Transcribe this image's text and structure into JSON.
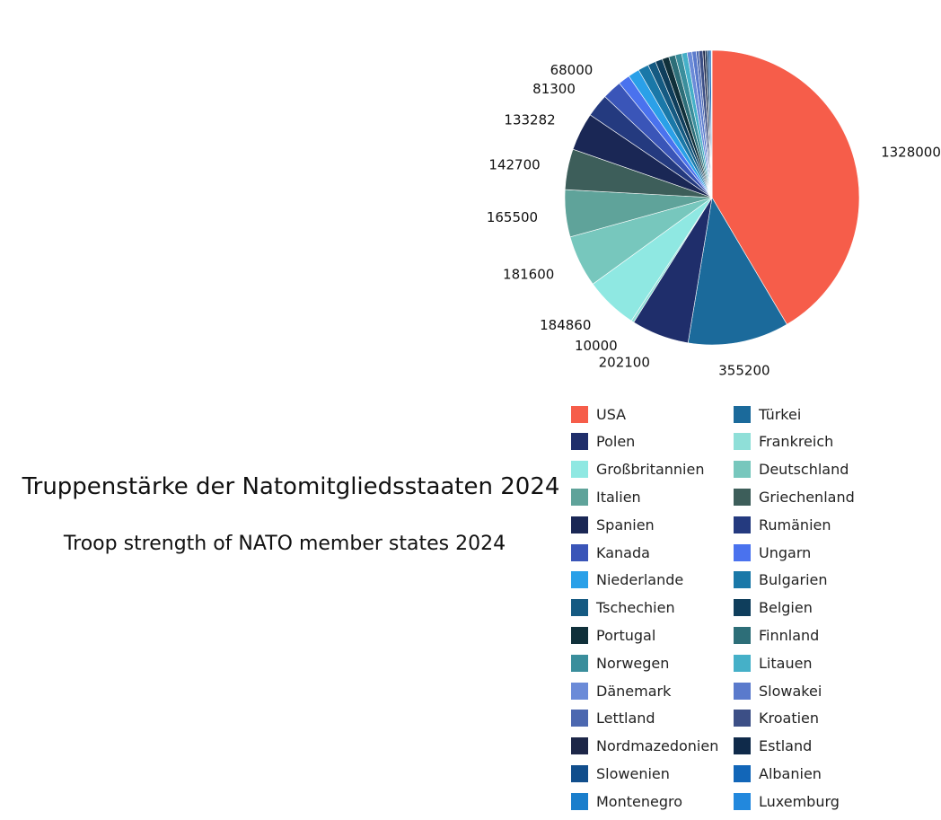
{
  "titles": {
    "main": "Truppenstärke der Natomitgliedsstaaten 2024",
    "sub": "Troop strength of NATO member states 2024"
  },
  "chart_data": {
    "type": "pie",
    "start_angle_deg": 0,
    "direction": "clockwise",
    "legend_position": "bottom",
    "legend_columns": 2,
    "labels_shown": [
      "USA",
      "Türkei",
      "Polen",
      "Frankreich",
      "Großbritannien",
      "Deutschland",
      "Italien",
      "Griechenland",
      "Spanien",
      "Rumänien",
      "Kanada"
    ],
    "slices": [
      {
        "label": "USA",
        "value": 1328000,
        "color": "#f65d4a"
      },
      {
        "label": "Türkei",
        "value": 355200,
        "color": "#1b6a9b"
      },
      {
        "label": "Polen",
        "value": 202100,
        "color": "#1f2e6b"
      },
      {
        "label": "Frankreich",
        "value": 10000,
        "color": "#8fdfd8"
      },
      {
        "label": "Großbritannien",
        "value": 184860,
        "color": "#8fe8e2"
      },
      {
        "label": "Deutschland",
        "value": 181600,
        "color": "#77c7bd"
      },
      {
        "label": "Italien",
        "value": 165500,
        "color": "#5fa39a"
      },
      {
        "label": "Griechenland",
        "value": 142700,
        "color": "#3d5e5a"
      },
      {
        "label": "Spanien",
        "value": 133282,
        "color": "#1a2755"
      },
      {
        "label": "Rumänien",
        "value": 81300,
        "color": "#243a7f"
      },
      {
        "label": "Kanada",
        "value": 68000,
        "color": "#3a55b8"
      },
      {
        "label": "Ungarn",
        "value": 41000,
        "color": "#4a72ee"
      },
      {
        "label": "Niederlande",
        "value": 40000,
        "color": "#2aa0e8"
      },
      {
        "label": "Bulgarien",
        "value": 37000,
        "color": "#1a78a8"
      },
      {
        "label": "Tschechien",
        "value": 28000,
        "color": "#155a82"
      },
      {
        "label": "Belgien",
        "value": 25000,
        "color": "#0f3e5c"
      },
      {
        "label": "Portugal",
        "value": 24000,
        "color": "#10303a"
      },
      {
        "label": "Finnland",
        "value": 23000,
        "color": "#2d6e78"
      },
      {
        "label": "Norwegen",
        "value": 23000,
        "color": "#3a8e9c"
      },
      {
        "label": "Litauen",
        "value": 19000,
        "color": "#45b0c8"
      },
      {
        "label": "Dänemark",
        "value": 17000,
        "color": "#6b8bd8"
      },
      {
        "label": "Slowakei",
        "value": 15000,
        "color": "#5a7acc"
      },
      {
        "label": "Lettland",
        "value": 9000,
        "color": "#4c68b0"
      },
      {
        "label": "Kroatien",
        "value": 14000,
        "color": "#3c4f86"
      },
      {
        "label": "Nordmazedonien",
        "value": 8000,
        "color": "#1d2748"
      },
      {
        "label": "Estland",
        "value": 7000,
        "color": "#0f2a4a"
      },
      {
        "label": "Slowenien",
        "value": 7000,
        "color": "#114e8c"
      },
      {
        "label": "Albanien",
        "value": 7000,
        "color": "#1266b8"
      },
      {
        "label": "Montenegro",
        "value": 2000,
        "color": "#1a7ecc"
      },
      {
        "label": "Luxemburg",
        "value": 1000,
        "color": "#2288dd"
      }
    ]
  }
}
